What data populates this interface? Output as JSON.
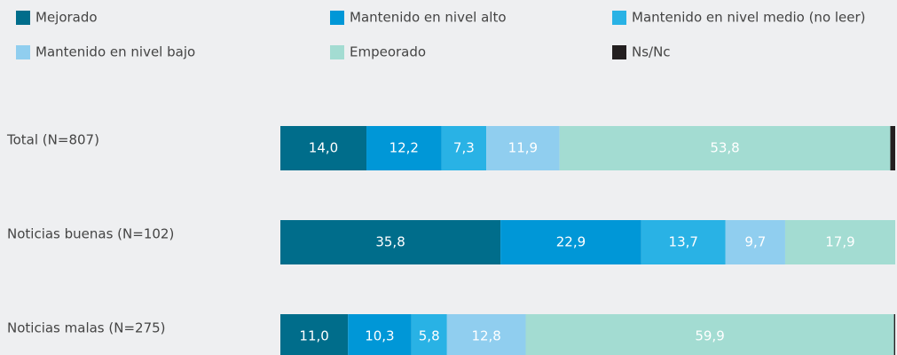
{
  "chart_data": {
    "type": "stacked_bar_horizontal",
    "categories": [
      "Total (N=807)",
      "Noticias buenas (N=102)",
      "Noticias malas (N=275)"
    ],
    "xlim": [
      0,
      100
    ],
    "series": [
      {
        "name": "Mejorado",
        "color": "#006d8b",
        "values": [
          14.0,
          35.8,
          11.0
        ],
        "value_labels": [
          "14,0",
          "35,8",
          "11,0"
        ]
      },
      {
        "name": "Mantenido en nivel alto",
        "color": "#0097d7",
        "values": [
          12.2,
          22.9,
          10.3
        ],
        "value_labels": [
          "12,2",
          "22,9",
          "10,3"
        ]
      },
      {
        "name": "Mantenido en nivel medio (no leer)",
        "color": "#29b2e5",
        "values": [
          7.3,
          13.7,
          5.8
        ],
        "value_labels": [
          "7,3",
          "13,7",
          "5,8"
        ]
      },
      {
        "name": "Mantenido en nivel bajo",
        "color": "#90ceef",
        "values": [
          11.9,
          9.7,
          12.8
        ],
        "value_labels": [
          "11,9",
          "9,7",
          "12,8"
        ]
      },
      {
        "name": "Empeorado",
        "color": "#a3dcd2",
        "values": [
          53.8,
          17.9,
          59.9
        ],
        "value_labels": [
          "53,8",
          "17,9",
          "59,9"
        ]
      },
      {
        "name": "Ns/Nc",
        "color": "#231f20",
        "values": [
          0.8,
          0.0,
          0.2
        ]
      }
    ]
  }
}
